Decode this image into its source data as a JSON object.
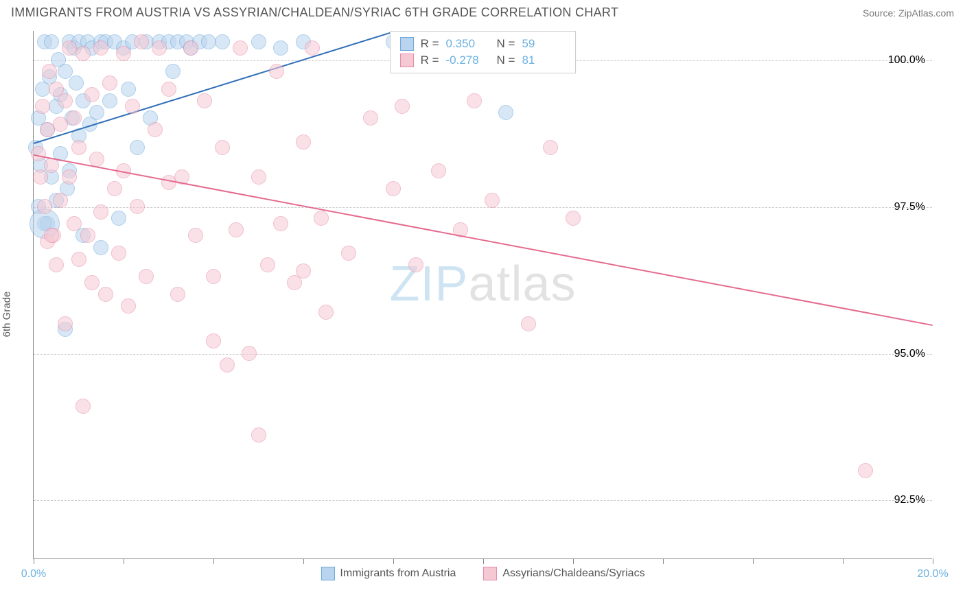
{
  "header": {
    "title": "IMMIGRANTS FROM AUSTRIA VS ASSYRIAN/CHALDEAN/SYRIAC 6TH GRADE CORRELATION CHART",
    "source": "Source: ZipAtlas.com"
  },
  "chart": {
    "type": "scatter",
    "y_axis_label": "6th Grade",
    "xlim": [
      0,
      20
    ],
    "ylim": [
      91.5,
      100.5
    ],
    "x_ticks": [
      0,
      2,
      4,
      6,
      8,
      10,
      12,
      14,
      16,
      18,
      20
    ],
    "x_tick_labels_shown": {
      "0": "0.0%",
      "20": "20.0%"
    },
    "y_ticks": [
      92.5,
      95.0,
      97.5,
      100.0
    ],
    "y_tick_labels": [
      "92.5%",
      "95.0%",
      "97.5%",
      "100.0%"
    ],
    "background_color": "#ffffff",
    "grid_color": "#cccccc",
    "axis_color": "#888888",
    "tick_label_color": "#6bb1e1",
    "watermark": {
      "prefix": "ZIP",
      "suffix": "atlas",
      "prefix_color": "#a9cfe8",
      "suffix_color": "#cccccc",
      "fontsize": 72
    },
    "series": [
      {
        "name": "Immigrants from Austria",
        "fill": "#b9d4ee",
        "stroke": "#6da7d9",
        "fill_opacity": 0.55,
        "marker_radius": 11,
        "trend": {
          "color": "#2f6fb8",
          "x1": 0,
          "y1": 98.6,
          "x2": 8.0,
          "y2": 100.5,
          "width": 2
        },
        "points": [
          [
            0.05,
            98.5
          ],
          [
            0.1,
            99.0
          ],
          [
            0.15,
            98.2
          ],
          [
            0.2,
            99.5
          ],
          [
            0.25,
            100.3
          ],
          [
            0.3,
            98.8
          ],
          [
            0.3,
            97.2
          ],
          [
            0.35,
            99.7
          ],
          [
            0.4,
            98.0
          ],
          [
            0.4,
            100.3
          ],
          [
            0.5,
            99.2
          ],
          [
            0.5,
            97.6
          ],
          [
            0.55,
            100.0
          ],
          [
            0.6,
            98.4
          ],
          [
            0.6,
            99.4
          ],
          [
            0.7,
            99.8
          ],
          [
            0.75,
            97.8
          ],
          [
            0.8,
            100.3
          ],
          [
            0.8,
            98.1
          ],
          [
            0.85,
            99.0
          ],
          [
            0.9,
            100.2
          ],
          [
            0.95,
            99.6
          ],
          [
            1.0,
            98.7
          ],
          [
            1.0,
            100.3
          ],
          [
            1.1,
            97.0
          ],
          [
            1.1,
            99.3
          ],
          [
            1.2,
            100.3
          ],
          [
            1.25,
            98.9
          ],
          [
            1.3,
            100.2
          ],
          [
            1.4,
            99.1
          ],
          [
            1.5,
            100.3
          ],
          [
            1.5,
            96.8
          ],
          [
            1.6,
            100.3
          ],
          [
            1.7,
            99.3
          ],
          [
            1.8,
            100.3
          ],
          [
            1.9,
            97.3
          ],
          [
            2.0,
            100.2
          ],
          [
            2.1,
            99.5
          ],
          [
            2.2,
            100.3
          ],
          [
            2.3,
            98.5
          ],
          [
            2.5,
            100.3
          ],
          [
            2.6,
            99.0
          ],
          [
            2.8,
            100.3
          ],
          [
            3.0,
            100.3
          ],
          [
            3.1,
            99.8
          ],
          [
            3.2,
            100.3
          ],
          [
            3.4,
            100.3
          ],
          [
            3.5,
            100.2
          ],
          [
            3.7,
            100.3
          ],
          [
            3.9,
            100.3
          ],
          [
            4.2,
            100.3
          ],
          [
            5.0,
            100.3
          ],
          [
            5.5,
            100.2
          ],
          [
            6.0,
            100.3
          ],
          [
            8.0,
            100.3
          ],
          [
            10.5,
            99.1
          ],
          [
            0.7,
            95.4
          ],
          [
            0.25,
            97.2
          ],
          [
            0.1,
            97.5
          ]
        ],
        "big_points": [
          [
            0.25,
            97.2,
            22
          ]
        ]
      },
      {
        "name": "Assyrians/Chaldeans/Syriacs",
        "fill": "#f5c9d4",
        "stroke": "#e68aa4",
        "fill_opacity": 0.55,
        "marker_radius": 11,
        "trend": {
          "color": "#e56b8e",
          "x1": 0,
          "y1": 98.4,
          "x2": 20.0,
          "y2": 95.5,
          "width": 2
        },
        "points": [
          [
            0.1,
            98.4
          ],
          [
            0.15,
            98.0
          ],
          [
            0.2,
            99.2
          ],
          [
            0.25,
            97.5
          ],
          [
            0.3,
            98.8
          ],
          [
            0.3,
            96.9
          ],
          [
            0.35,
            99.8
          ],
          [
            0.4,
            98.2
          ],
          [
            0.45,
            97.0
          ],
          [
            0.5,
            99.5
          ],
          [
            0.5,
            96.5
          ],
          [
            0.6,
            98.9
          ],
          [
            0.6,
            97.6
          ],
          [
            0.7,
            99.3
          ],
          [
            0.7,
            95.5
          ],
          [
            0.8,
            98.0
          ],
          [
            0.8,
            100.2
          ],
          [
            0.9,
            97.2
          ],
          [
            0.9,
            99.0
          ],
          [
            1.0,
            96.6
          ],
          [
            1.0,
            98.5
          ],
          [
            1.1,
            100.1
          ],
          [
            1.1,
            94.1
          ],
          [
            1.2,
            97.0
          ],
          [
            1.3,
            99.4
          ],
          [
            1.3,
            96.2
          ],
          [
            1.4,
            98.3
          ],
          [
            1.5,
            100.2
          ],
          [
            1.5,
            97.4
          ],
          [
            1.6,
            96.0
          ],
          [
            1.7,
            99.6
          ],
          [
            1.8,
            97.8
          ],
          [
            1.9,
            96.7
          ],
          [
            2.0,
            100.1
          ],
          [
            2.0,
            98.1
          ],
          [
            2.1,
            95.8
          ],
          [
            2.2,
            99.2
          ],
          [
            2.3,
            97.5
          ],
          [
            2.4,
            100.3
          ],
          [
            2.5,
            96.3
          ],
          [
            2.7,
            98.8
          ],
          [
            2.8,
            100.2
          ],
          [
            3.0,
            97.9
          ],
          [
            3.0,
            99.5
          ],
          [
            3.2,
            96.0
          ],
          [
            3.3,
            98.0
          ],
          [
            3.5,
            100.2
          ],
          [
            3.6,
            97.0
          ],
          [
            3.8,
            99.3
          ],
          [
            4.0,
            96.3
          ],
          [
            4.0,
            95.2
          ],
          [
            4.2,
            98.5
          ],
          [
            4.3,
            94.8
          ],
          [
            4.5,
            97.1
          ],
          [
            4.6,
            100.2
          ],
          [
            4.8,
            95.0
          ],
          [
            5.0,
            98.0
          ],
          [
            5.0,
            93.6
          ],
          [
            5.2,
            96.5
          ],
          [
            5.4,
            99.8
          ],
          [
            5.5,
            97.2
          ],
          [
            5.8,
            96.2
          ],
          [
            6.0,
            98.6
          ],
          [
            6.0,
            96.4
          ],
          [
            6.2,
            100.2
          ],
          [
            6.4,
            97.3
          ],
          [
            6.5,
            95.7
          ],
          [
            7.0,
            96.7
          ],
          [
            7.5,
            99.0
          ],
          [
            8.0,
            97.8
          ],
          [
            8.2,
            99.2
          ],
          [
            8.5,
            96.5
          ],
          [
            9.0,
            98.1
          ],
          [
            9.5,
            97.1
          ],
          [
            9.8,
            99.3
          ],
          [
            10.2,
            97.6
          ],
          [
            11.0,
            95.5
          ],
          [
            11.5,
            98.5
          ],
          [
            12.0,
            97.3
          ],
          [
            18.5,
            93.0
          ],
          [
            0.4,
            97.0
          ]
        ],
        "big_points": []
      }
    ],
    "stats_box": {
      "rows": [
        {
          "swatch_fill": "#b9d4ee",
          "swatch_stroke": "#6da7d9",
          "r_label": "R =",
          "r_value": "0.350",
          "n_label": "N =",
          "n_value": "59"
        },
        {
          "swatch_fill": "#f5c9d4",
          "swatch_stroke": "#e68aa4",
          "r_label": "R =",
          "r_value": "-0.278",
          "n_label": "N =",
          "n_value": "81"
        }
      ]
    },
    "legend_bottom": [
      {
        "swatch_fill": "#b9d4ee",
        "swatch_stroke": "#6da7d9",
        "label": "Immigrants from Austria"
      },
      {
        "swatch_fill": "#f5c9d4",
        "swatch_stroke": "#e68aa4",
        "label": "Assyrians/Chaldeans/Syriacs"
      }
    ]
  }
}
